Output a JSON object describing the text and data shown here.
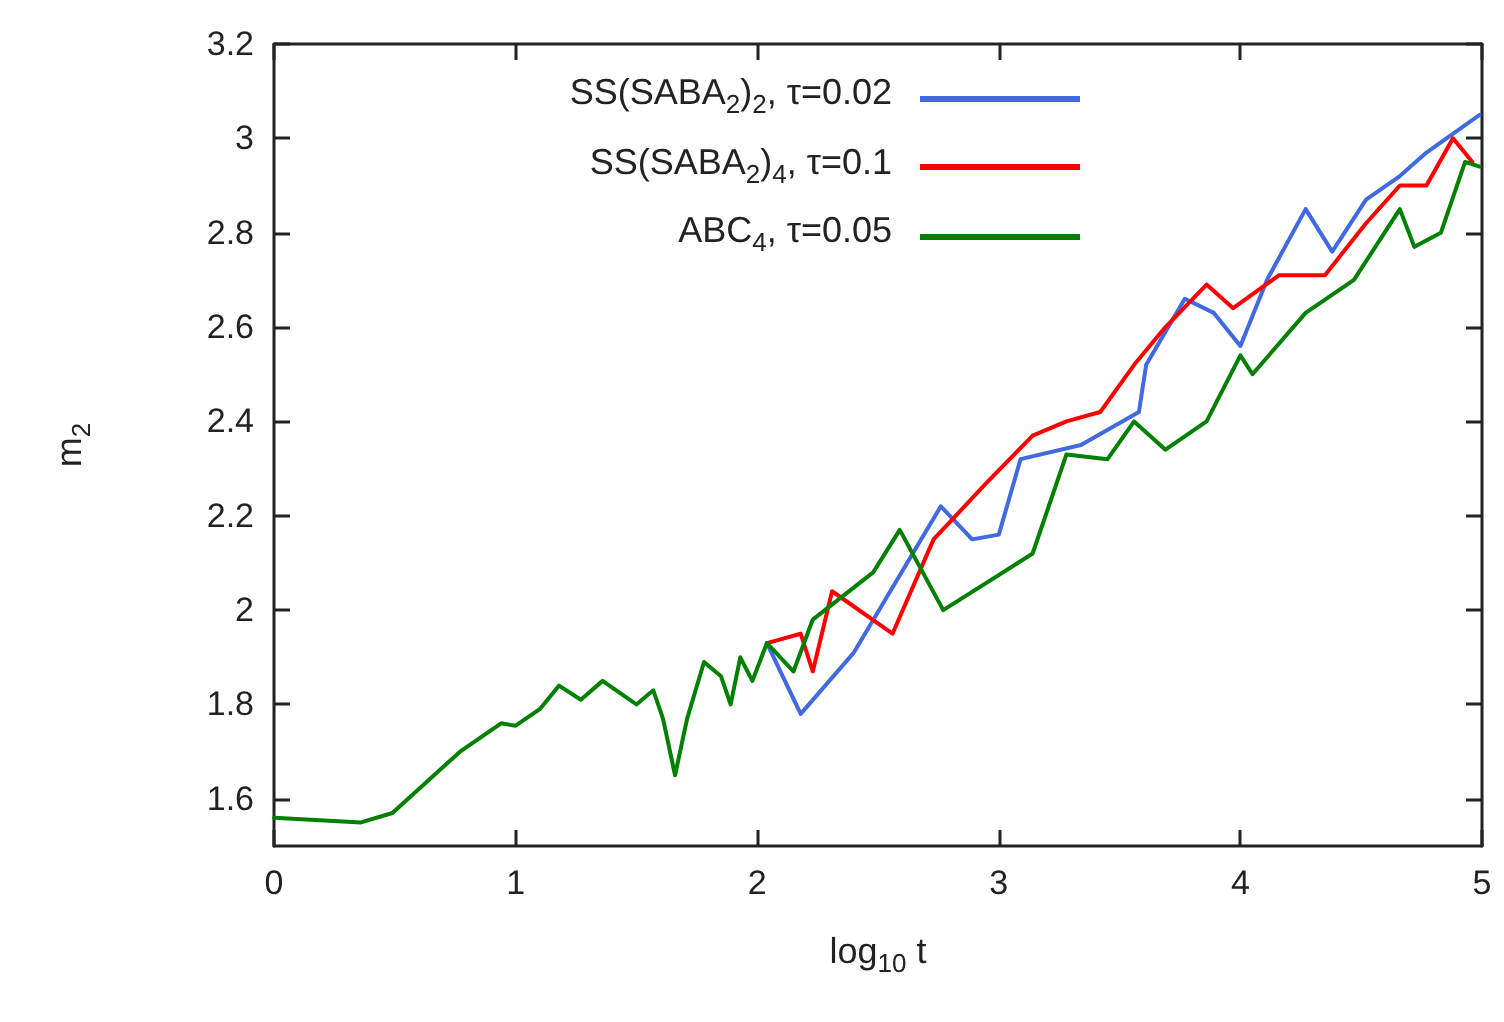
{
  "chart_data": {
    "type": "line",
    "xlabel": "log$_{10}$ t",
    "ylabel": "m$_{2}$",
    "xlim": [
      0,
      5
    ],
    "xticks": [
      0,
      1,
      2,
      3,
      4,
      5
    ],
    "ylim": [
      1.5,
      3.2
    ],
    "yticks": [
      1.6,
      1.8,
      2,
      2.2,
      2.4,
      2.6,
      2.8,
      3,
      3.2
    ],
    "grid": false,
    "legend": "top right",
    "marker": "none",
    "line_style": "solid",
    "series": [
      {
        "name": "SS(SABA$_{2}$)$_{2}$, τ=0.02",
        "color": "#4169e1",
        "x": [
          2.04,
          2.18,
          2.4,
          2.76,
          2.89,
          3.0,
          3.09,
          3.34,
          3.58,
          3.61,
          3.77,
          3.89,
          4.0,
          4.11,
          4.27,
          4.38,
          4.52,
          4.66,
          4.77,
          4.99
        ],
        "values": [
          1.93,
          1.78,
          1.91,
          2.22,
          2.15,
          2.16,
          2.32,
          2.35,
          2.42,
          2.52,
          2.66,
          2.63,
          2.56,
          2.7,
          2.85,
          2.76,
          2.87,
          2.92,
          2.97,
          3.05
        ]
      },
      {
        "name": "SS(SABA$_{2}$)$_{4}$, τ=0.1",
        "color": "#ff0000",
        "x": [
          2.04,
          2.18,
          2.23,
          2.31,
          2.56,
          2.73,
          2.95,
          3.14,
          3.28,
          3.42,
          3.56,
          3.69,
          3.86,
          3.97,
          4.16,
          4.35,
          4.52,
          4.66,
          4.77,
          4.88,
          4.96
        ],
        "values": [
          1.93,
          1.95,
          1.87,
          2.04,
          1.95,
          2.15,
          2.27,
          2.37,
          2.4,
          2.42,
          2.52,
          2.6,
          2.69,
          2.64,
          2.71,
          2.71,
          2.82,
          2.9,
          2.9,
          3.0,
          2.95
        ]
      },
      {
        "name": "ABC$_{4}$, τ=0.05",
        "color": "#008000",
        "x": [
          0,
          0.36,
          0.49,
          0.77,
          0.94,
          1.0,
          1.1,
          1.18,
          1.27,
          1.36,
          1.5,
          1.57,
          1.61,
          1.66,
          1.71,
          1.78,
          1.85,
          1.89,
          1.93,
          1.98,
          2.04,
          2.15,
          2.23,
          2.48,
          2.59,
          2.77,
          3.14,
          3.28,
          3.45,
          3.56,
          3.69,
          3.86,
          4.0,
          4.05,
          4.27,
          4.47,
          4.66,
          4.72,
          4.83,
          4.93,
          4.99
        ],
        "values": [
          1.56,
          1.55,
          1.57,
          1.7,
          1.76,
          1.755,
          1.79,
          1.84,
          1.81,
          1.85,
          1.8,
          1.83,
          1.77,
          1.65,
          1.77,
          1.89,
          1.86,
          1.8,
          1.9,
          1.85,
          1.93,
          1.87,
          1.98,
          2.08,
          2.17,
          2.0,
          2.12,
          2.33,
          2.32,
          2.4,
          2.34,
          2.4,
          2.54,
          2.5,
          2.63,
          2.7,
          2.85,
          2.77,
          2.8,
          2.95,
          2.94
        ]
      }
    ]
  }
}
